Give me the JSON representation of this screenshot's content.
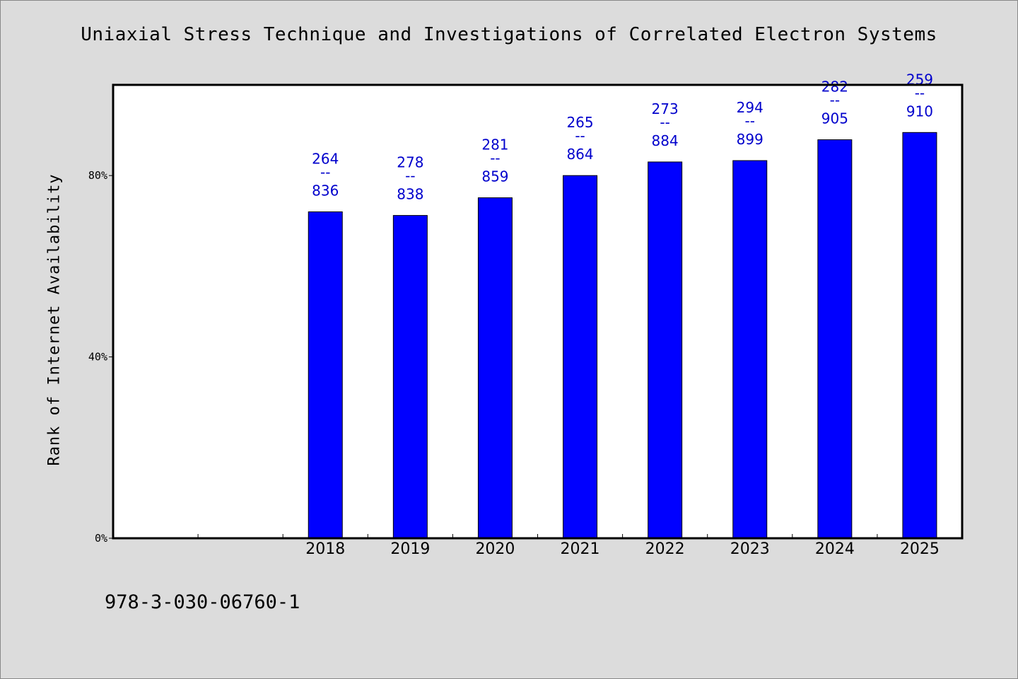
{
  "chart_data": {
    "type": "bar",
    "title": "Uniaxial Stress Technique and Investigations of Correlated Electron Systems",
    "xlabel": "",
    "ylabel": "Rank of Internet Availability",
    "categories": [
      "",
      "",
      "2018",
      "2019",
      "2020",
      "2021",
      "2022",
      "2023",
      "2024",
      "2025"
    ],
    "series": [
      {
        "values": [
          null,
          null,
          72,
          71.2,
          75.1,
          80,
          83,
          83.3,
          87.9,
          89.5
        ],
        "color": "#0000ff"
      }
    ],
    "data_labels": [
      null,
      null,
      {
        "top": "264",
        "mid": "--",
        "bottom": "836"
      },
      {
        "top": "278",
        "mid": "--",
        "bottom": "838"
      },
      {
        "top": "281",
        "mid": "--",
        "bottom": "859"
      },
      {
        "top": "265",
        "mid": "--",
        "bottom": "864"
      },
      {
        "top": "273",
        "mid": "--",
        "bottom": "884"
      },
      {
        "top": "294",
        "mid": "--",
        "bottom": "899"
      },
      {
        "top": "282",
        "mid": "--",
        "bottom": "905"
      },
      {
        "top": "259",
        "mid": "--",
        "bottom": "910"
      }
    ],
    "ylim": [
      0,
      100
    ],
    "yticks": [
      0,
      40,
      80
    ],
    "ytick_labels": [
      "0%",
      "40%",
      "80%"
    ],
    "grid": false,
    "legend": "none"
  },
  "footer": {
    "isbn": "978-3-030-06760-1"
  },
  "colors": {
    "background": "#dcdcdc",
    "plot_background": "#ffffff",
    "bar": "#0000ff",
    "label": "#0000cc"
  }
}
